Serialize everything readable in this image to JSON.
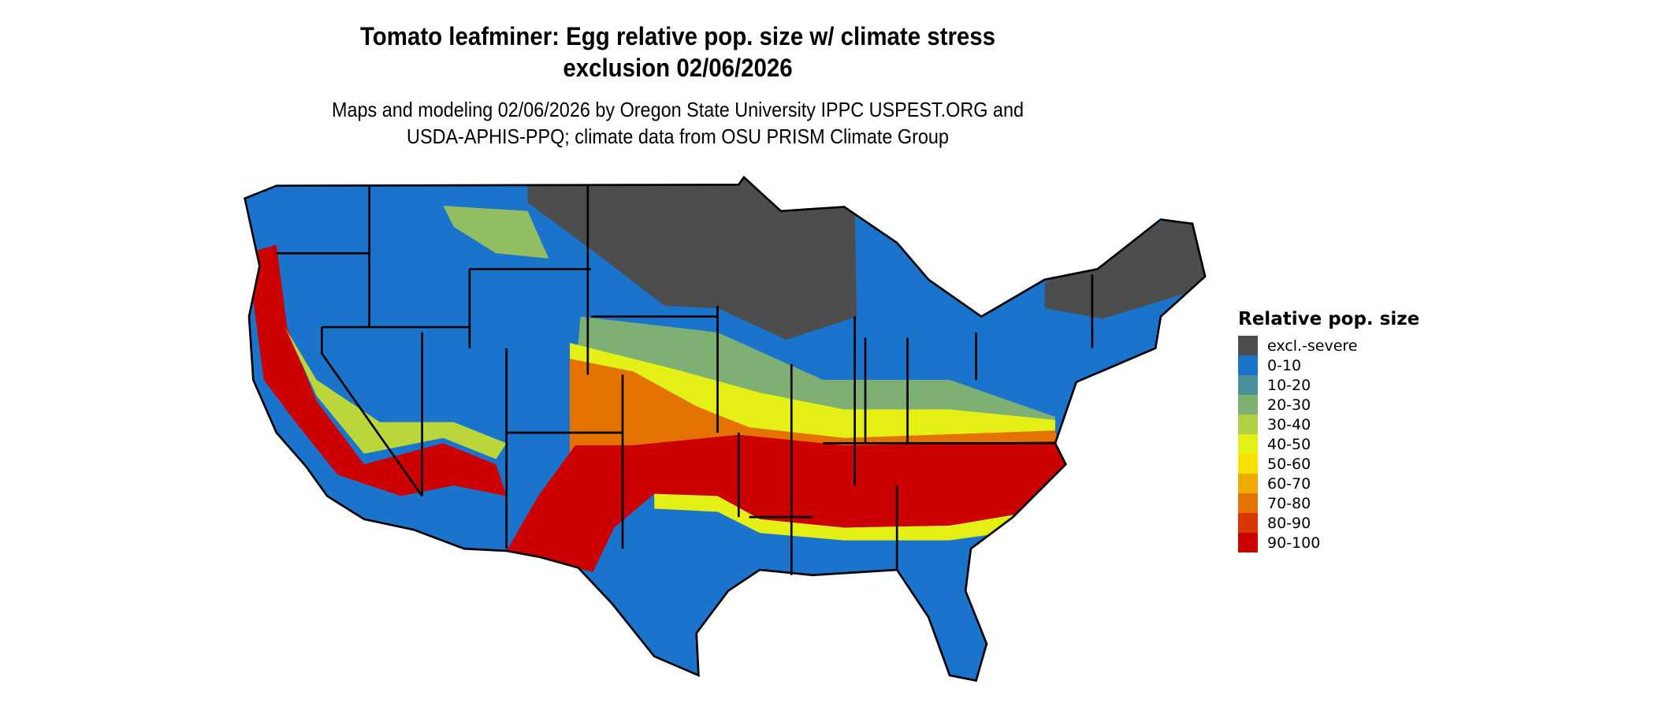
{
  "title": {
    "line1": "Tomato leafminer: Egg relative pop. size w/ climate stress",
    "line2": "exclusion 02/06/2026"
  },
  "subtitle": {
    "line1": "Maps and modeling 02/06/2026 by Oregon State University IPPC USPEST.ORG and",
    "line2": "USDA-APHIS-PPQ; climate data from OSU PRISM Climate Group"
  },
  "legend": {
    "title": "Relative pop. size",
    "items": [
      {
        "label": "excl.-severe",
        "color": "#4d4d4d"
      },
      {
        "label": "0-10",
        "color": "#1b74cc"
      },
      {
        "label": "10-20",
        "color": "#4a8f9c"
      },
      {
        "label": "20-30",
        "color": "#7eb073"
      },
      {
        "label": "30-40",
        "color": "#b2d046"
      },
      {
        "label": "40-50",
        "color": "#e4ef16"
      },
      {
        "label": "50-60",
        "color": "#f8e000"
      },
      {
        "label": "60-70",
        "color": "#eeaa00"
      },
      {
        "label": "70-80",
        "color": "#e47200"
      },
      {
        "label": "80-90",
        "color": "#da3600"
      },
      {
        "label": "90-100",
        "color": "#cc0000"
      }
    ]
  }
}
